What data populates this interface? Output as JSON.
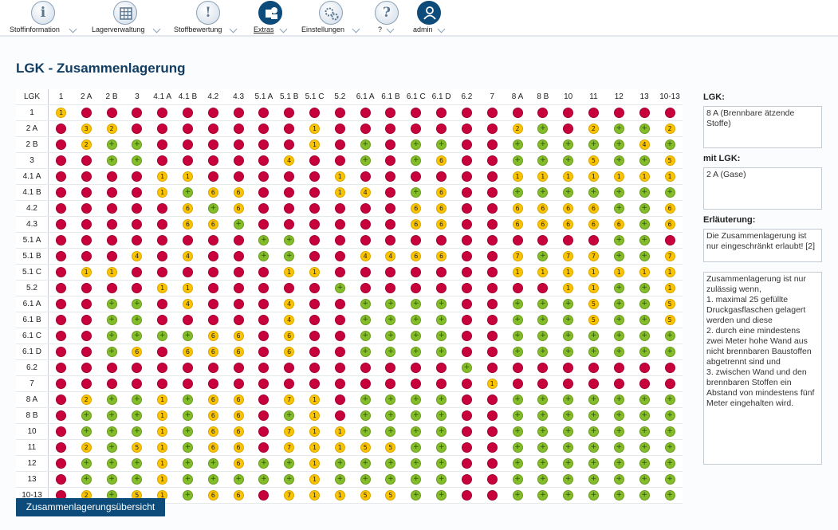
{
  "nav": [
    {
      "label": "Stoffinformation",
      "icon": "info-icon",
      "glyph": "i"
    },
    {
      "label": "Lagerverwaltung",
      "icon": "grid-icon",
      "glyph": ""
    },
    {
      "label": "Stoffbewertung",
      "icon": "warning-icon",
      "glyph": "!"
    },
    {
      "label": "Extras",
      "icon": "extras-icon",
      "glyph": ""
    },
    {
      "label": "Einstellungen",
      "icon": "gears-icon",
      "glyph": ""
    },
    {
      "label": "?",
      "icon": "help-icon",
      "glyph": "?"
    },
    {
      "label": "admin",
      "icon": "user-icon",
      "glyph": ""
    }
  ],
  "title": "LGK - Zusammenlagerung",
  "matrix": {
    "corner": "LGK",
    "columns": [
      "1",
      "2 A",
      "2 B",
      "3",
      "4.1 A",
      "4.1 B",
      "4.2",
      "4.3",
      "5.1 A",
      "5.1 B",
      "5.1 C",
      "5.2",
      "6.1 A",
      "6.1 B",
      "6.1 C",
      "6.1 D",
      "6.2",
      "7",
      "8 A",
      "8 B",
      "10",
      "11",
      "12",
      "13",
      "10-13"
    ],
    "rows": [
      {
        "label": "1",
        "cells": [
          "1",
          "R",
          "R",
          "R",
          "R",
          "R",
          "R",
          "R",
          "R",
          "R",
          "R",
          "R",
          "R",
          "R",
          "R",
          "R",
          "R",
          "R",
          "R",
          "R",
          "R",
          "R",
          "R",
          "R",
          "R"
        ]
      },
      {
        "label": "2 A",
        "cells": [
          "R",
          "3",
          "2",
          "R",
          "R",
          "R",
          "R",
          "R",
          "R",
          "R",
          "1",
          "R",
          "R",
          "R",
          "R",
          "R",
          "R",
          "R",
          "2",
          "+",
          "R",
          "2",
          "+",
          "+",
          "2"
        ]
      },
      {
        "label": "2 B",
        "cells": [
          "R",
          "2",
          "+",
          "+",
          "R",
          "R",
          "R",
          "R",
          "R",
          "R",
          "1",
          "R",
          "+",
          "R",
          "+",
          "+",
          "R",
          "R",
          "+",
          "+",
          "+",
          "+",
          "+",
          "4",
          "+"
        ]
      },
      {
        "label": "3",
        "cells": [
          "R",
          "R",
          "+",
          "+",
          "R",
          "R",
          "R",
          "R",
          "R",
          "4",
          "R",
          "R",
          "+",
          "R",
          "+",
          "6",
          "R",
          "R",
          "+",
          "+",
          "+",
          "5",
          "+",
          "+",
          "5"
        ]
      },
      {
        "label": "4.1 A",
        "cells": [
          "R",
          "R",
          "R",
          "R",
          "1",
          "1",
          "R",
          "R",
          "R",
          "R",
          "R",
          "1",
          "R",
          "R",
          "R",
          "R",
          "R",
          "R",
          "1",
          "1",
          "1",
          "1",
          "1",
          "1",
          "1"
        ]
      },
      {
        "label": "4.1 B",
        "cells": [
          "R",
          "R",
          "R",
          "R",
          "1",
          "+",
          "6",
          "6",
          "R",
          "R",
          "R",
          "1",
          "4",
          "R",
          "+",
          "6",
          "R",
          "R",
          "+",
          "+",
          "+",
          "+",
          "+",
          "+",
          "+"
        ]
      },
      {
        "label": "4.2",
        "cells": [
          "R",
          "R",
          "R",
          "R",
          "R",
          "6",
          "+",
          "6",
          "R",
          "R",
          "R",
          "R",
          "R",
          "R",
          "6",
          "6",
          "R",
          "R",
          "6",
          "6",
          "6",
          "6",
          "+",
          "+",
          "6"
        ]
      },
      {
        "label": "4.3",
        "cells": [
          "R",
          "R",
          "R",
          "R",
          "R",
          "6",
          "6",
          "+",
          "R",
          "R",
          "R",
          "R",
          "R",
          "R",
          "6",
          "6",
          "R",
          "R",
          "6",
          "6",
          "6",
          "6",
          "6",
          "+",
          "6"
        ]
      },
      {
        "label": "5.1 A",
        "cells": [
          "R",
          "R",
          "R",
          "R",
          "R",
          "R",
          "R",
          "R",
          "+",
          "+",
          "R",
          "R",
          "R",
          "R",
          "R",
          "R",
          "R",
          "R",
          "R",
          "R",
          "R",
          "R",
          "+",
          "+",
          "R"
        ]
      },
      {
        "label": "5.1 B",
        "cells": [
          "R",
          "R",
          "R",
          "4",
          "R",
          "4",
          "R",
          "R",
          "+",
          "+",
          "R",
          "R",
          "4",
          "4",
          "6",
          "6",
          "R",
          "R",
          "7",
          "+",
          "7",
          "7",
          "+",
          "+",
          "7"
        ]
      },
      {
        "label": "5.1 C",
        "cells": [
          "R",
          "1",
          "1",
          "R",
          "R",
          "R",
          "R",
          "R",
          "R",
          "1",
          "1",
          "R",
          "R",
          "R",
          "R",
          "R",
          "R",
          "R",
          "1",
          "1",
          "1",
          "1",
          "1",
          "1",
          "1"
        ]
      },
      {
        "label": "5.2",
        "cells": [
          "R",
          "R",
          "R",
          "R",
          "1",
          "1",
          "R",
          "R",
          "R",
          "R",
          "R",
          "+",
          "R",
          "R",
          "R",
          "R",
          "R",
          "R",
          "R",
          "R",
          "1",
          "1",
          "+",
          "+",
          "1"
        ]
      },
      {
        "label": "6.1 A",
        "cells": [
          "R",
          "R",
          "+",
          "+",
          "R",
          "4",
          "R",
          "R",
          "R",
          "4",
          "R",
          "R",
          "+",
          "+",
          "+",
          "+",
          "R",
          "R",
          "+",
          "+",
          "+",
          "5",
          "+",
          "+",
          "5"
        ]
      },
      {
        "label": "6.1 B",
        "cells": [
          "R",
          "R",
          "+",
          "+",
          "R",
          "R",
          "R",
          "R",
          "R",
          "4",
          "R",
          "R",
          "+",
          "+",
          "+",
          "+",
          "R",
          "R",
          "+",
          "+",
          "+",
          "5",
          "+",
          "+",
          "5"
        ]
      },
      {
        "label": "6.1 C",
        "cells": [
          "R",
          "R",
          "+",
          "+",
          "+",
          "+",
          "6",
          "6",
          "R",
          "6",
          "R",
          "R",
          "+",
          "+",
          "+",
          "+",
          "R",
          "R",
          "+",
          "+",
          "+",
          "+",
          "+",
          "+",
          "+"
        ]
      },
      {
        "label": "6.1 D",
        "cells": [
          "R",
          "R",
          "+",
          "6",
          "R",
          "6",
          "6",
          "6",
          "R",
          "6",
          "R",
          "R",
          "+",
          "+",
          "+",
          "+",
          "R",
          "R",
          "+",
          "+",
          "+",
          "+",
          "+",
          "+",
          "+"
        ]
      },
      {
        "label": "6.2",
        "cells": [
          "R",
          "R",
          "R",
          "R",
          "R",
          "R",
          "R",
          "R",
          "R",
          "R",
          "R",
          "R",
          "R",
          "R",
          "R",
          "R",
          "+",
          "R",
          "R",
          "R",
          "R",
          "R",
          "R",
          "R",
          "R"
        ]
      },
      {
        "label": "7",
        "cells": [
          "R",
          "R",
          "R",
          "R",
          "R",
          "R",
          "R",
          "R",
          "R",
          "R",
          "R",
          "R",
          "R",
          "R",
          "R",
          "R",
          "R",
          "1",
          "R",
          "R",
          "R",
          "R",
          "R",
          "R",
          "R"
        ]
      },
      {
        "label": "8 A",
        "cells": [
          "R",
          "2",
          "+",
          "+",
          "1",
          "+",
          "6",
          "6",
          "R",
          "7",
          "1",
          "R",
          "+",
          "+",
          "+",
          "+",
          "R",
          "R",
          "+",
          "+",
          "+",
          "+",
          "+",
          "+",
          "+"
        ]
      },
      {
        "label": "8 B",
        "cells": [
          "R",
          "+",
          "+",
          "+",
          "1",
          "+",
          "6",
          "6",
          "R",
          "+",
          "1",
          "R",
          "+",
          "+",
          "+",
          "+",
          "R",
          "R",
          "+",
          "+",
          "+",
          "+",
          "+",
          "+",
          "+"
        ]
      },
      {
        "label": "10",
        "cells": [
          "R",
          "+",
          "+",
          "+",
          "1",
          "+",
          "6",
          "6",
          "R",
          "7",
          "1",
          "1",
          "+",
          "+",
          "+",
          "+",
          "R",
          "R",
          "+",
          "+",
          "+",
          "+",
          "+",
          "+",
          "+"
        ]
      },
      {
        "label": "11",
        "cells": [
          "R",
          "2",
          "+",
          "5",
          "1",
          "+",
          "6",
          "6",
          "R",
          "7",
          "1",
          "1",
          "5",
          "5",
          "+",
          "+",
          "R",
          "R",
          "+",
          "+",
          "+",
          "+",
          "+",
          "+",
          "+"
        ]
      },
      {
        "label": "12",
        "cells": [
          "R",
          "+",
          "+",
          "+",
          "1",
          "+",
          "+",
          "6",
          "+",
          "+",
          "1",
          "+",
          "+",
          "+",
          "+",
          "+",
          "R",
          "R",
          "+",
          "+",
          "+",
          "+",
          "+",
          "+",
          "+"
        ]
      },
      {
        "label": "13",
        "cells": [
          "R",
          "+",
          "+",
          "+",
          "1",
          "+",
          "+",
          "+",
          "+",
          "+",
          "1",
          "+",
          "+",
          "+",
          "+",
          "+",
          "R",
          "R",
          "+",
          "+",
          "+",
          "+",
          "+",
          "+",
          "+"
        ]
      },
      {
        "label": "10-13",
        "cells": [
          "R",
          "2",
          "+",
          "5",
          "1",
          "+",
          "6",
          "6",
          "R",
          "7",
          "1",
          "1",
          "5",
          "5",
          "+",
          "+",
          "R",
          "R",
          "+",
          "+",
          "+",
          "+",
          "+",
          "+",
          "+"
        ]
      }
    ]
  },
  "side": {
    "lgk_label": "LGK:",
    "lgk_value": "8 A (Brennbare ätzende Stoffe)",
    "mit_label": "mit LGK:",
    "mit_value": "2 A (Gase)",
    "expl_label": "Erläuterung:",
    "expl_short": "Die Zusammenlagerung ist nur eingeschränkt erlaubt! [2]",
    "expl_long": "Zusammenlagerung ist nur zulässig wenn,\n1. maximal 25 gefüllte Druckgasflaschen gelagert werden und diese\n2. durch eine mindestens zwei Meter hohe Wand aus nicht brennbaren Baustoffen abgetrennt sind und\n3. zwischen Wand und den brennbaren Stoffen ein Abstand von mindestens fünf Meter eingehalten wird."
  },
  "button_label": "Zusammenlagerungsübersicht",
  "colors": {
    "forbidden": "#c8003c",
    "allowed": "#84bd2a",
    "restricted": "#fcc400",
    "brand": "#0d4b7a"
  }
}
